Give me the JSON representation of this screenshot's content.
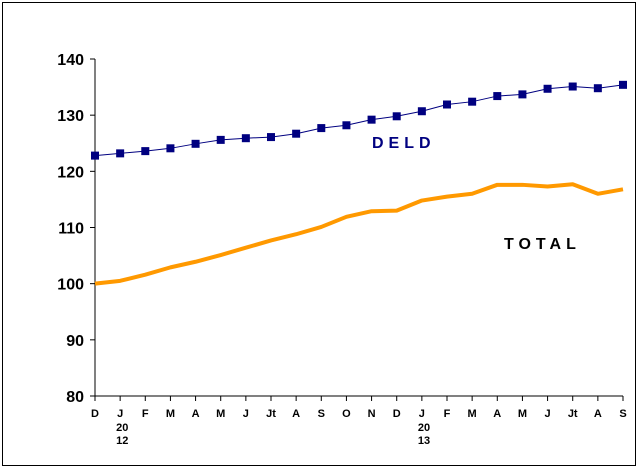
{
  "chart_data": {
    "type": "line",
    "title": "",
    "xlabel": "",
    "ylabel": "",
    "ylim": [
      80,
      140
    ],
    "yticks": [
      80,
      90,
      100,
      110,
      120,
      130,
      140
    ],
    "categories": [
      "D",
      "J",
      "F",
      "M",
      "A",
      "M",
      "J",
      "Jt",
      "A",
      "S",
      "O",
      "N",
      "D",
      "J",
      "F",
      "M",
      "A",
      "M",
      "J",
      "Jt",
      "A",
      "S"
    ],
    "year_labels": [
      {
        "index": 1,
        "lines": [
          "20",
          "12"
        ]
      },
      {
        "index": 13,
        "lines": [
          "20",
          "13"
        ]
      }
    ],
    "grid": false,
    "series": [
      {
        "name": "DELD",
        "color": "#000080",
        "marker": "square",
        "values": [
          122.8,
          123.2,
          123.6,
          124.1,
          124.9,
          125.6,
          125.9,
          126.1,
          126.7,
          127.7,
          128.2,
          129.2,
          129.8,
          130.7,
          131.9,
          132.4,
          133.4,
          133.7,
          134.7,
          135.1,
          134.8,
          135.4
        ]
      },
      {
        "name": "TOTAL",
        "color": "#FF9900",
        "marker": "none",
        "values": [
          100.0,
          100.5,
          101.6,
          102.9,
          103.9,
          105.1,
          106.4,
          107.7,
          108.8,
          110.1,
          111.9,
          112.9,
          113.0,
          114.8,
          115.5,
          116.0,
          117.6,
          117.6,
          117.3,
          117.7,
          116.0,
          116.8
        ]
      }
    ]
  }
}
